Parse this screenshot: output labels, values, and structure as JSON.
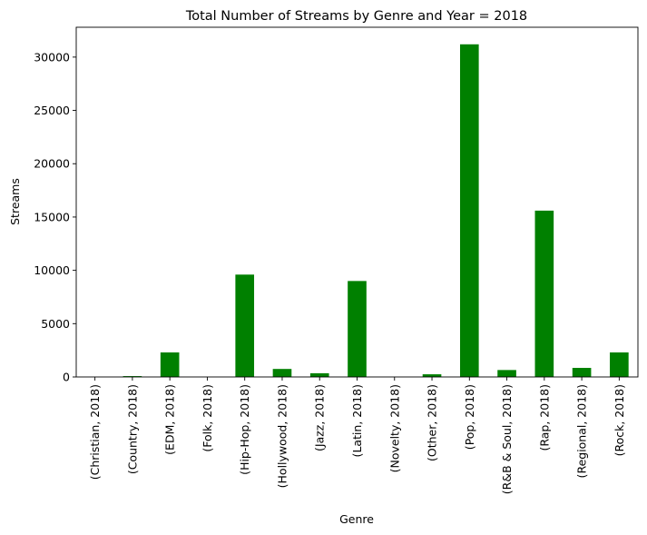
{
  "chart_data": {
    "type": "bar",
    "title": "Total Number of Streams by Genre and Year = 2018",
    "xlabel": "Genre",
    "ylabel": "Streams",
    "ylim": [
      0,
      32800
    ],
    "yticks": [
      0,
      5000,
      10000,
      15000,
      20000,
      25000,
      30000
    ],
    "categories": [
      "(Christian, 2018)",
      "(Country, 2018)",
      "(EDM, 2018)",
      "(Folk, 2018)",
      "(Hip-Hop, 2018)",
      "(Hollywood, 2018)",
      "(Jazz, 2018)",
      "(Latin, 2018)",
      "(Novelty, 2018)",
      "(Other, 2018)",
      "(Pop, 2018)",
      "(R&B & Soul, 2018)",
      "(Rap, 2018)",
      "(Regional, 2018)",
      "(Rock, 2018)"
    ],
    "values": [
      0,
      80,
      2300,
      0,
      9600,
      750,
      350,
      9000,
      0,
      250,
      31200,
      650,
      15600,
      850,
      2300
    ],
    "bar_color": "#008000",
    "grid": false,
    "legend": "none"
  }
}
